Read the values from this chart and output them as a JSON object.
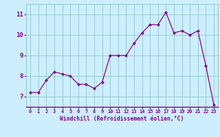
{
  "x": [
    0,
    1,
    2,
    3,
    4,
    5,
    6,
    7,
    8,
    9,
    10,
    11,
    12,
    13,
    14,
    15,
    16,
    17,
    18,
    19,
    20,
    21,
    22,
    23
  ],
  "y": [
    7.2,
    7.2,
    7.8,
    8.2,
    8.1,
    8.0,
    7.6,
    7.6,
    7.4,
    7.7,
    9.0,
    9.0,
    9.0,
    9.6,
    10.1,
    10.5,
    10.5,
    11.1,
    10.1,
    10.2,
    10.0,
    10.2,
    8.5,
    6.6
  ],
  "line_color": "#880088",
  "marker_color": "#880088",
  "bg_color": "#cceeff",
  "grid_color": "#99cccc",
  "xlabel": "Windchill (Refroidissement éolien,°C)",
  "xlabel_color": "#880088",
  "tick_color": "#880088",
  "ylim": [
    6.5,
    11.5
  ],
  "xlim": [
    -0.5,
    23.5
  ],
  "yticks": [
    7,
    8,
    9,
    10,
    11
  ],
  "xticks": [
    0,
    1,
    2,
    3,
    4,
    5,
    6,
    7,
    8,
    9,
    10,
    11,
    12,
    13,
    14,
    15,
    16,
    17,
    18,
    19,
    20,
    21,
    22,
    23
  ]
}
